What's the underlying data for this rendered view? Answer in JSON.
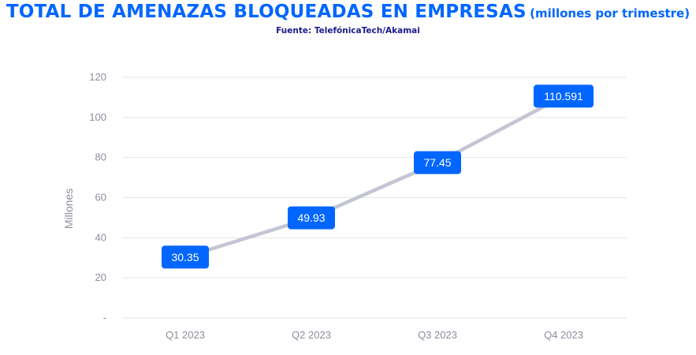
{
  "header": {
    "title": "TOTAL DE AMENAZAS BLOQUEADAS EN EMPRESAS",
    "subtitle": "(millones por trimestre)",
    "source": "Fuente: TelefónicaTech/Akamai"
  },
  "colors": {
    "title": "#0066ff",
    "source": "#1a1a8c",
    "line": "#c4c5d2",
    "label_bg": "#0066ff",
    "grid": "#e3e5ea",
    "tick": "#8a8f9c"
  },
  "chart_data": {
    "type": "line",
    "title": "TOTAL DE AMENAZAS BLOQUEADAS EN EMPRESAS",
    "subtitle": "(millones por trimestre)",
    "xlabel": "",
    "ylabel": "Millones",
    "categories": [
      "Q1 2023",
      "Q2 2023",
      "Q3 2023",
      "Q4 2023"
    ],
    "series": [
      {
        "values": [
          30.35,
          49.93,
          77.45,
          110.591
        ]
      }
    ],
    "data_labels": [
      "30.35",
      "49.93",
      "77.45",
      "110.591"
    ],
    "ylim": [
      0,
      120
    ],
    "yticks": [
      0,
      20,
      40,
      60,
      80,
      100,
      120
    ],
    "ytick_labels": [
      "-",
      "20",
      "40",
      "60",
      "80",
      "100",
      "120"
    ],
    "grid": true,
    "legend": "none"
  }
}
